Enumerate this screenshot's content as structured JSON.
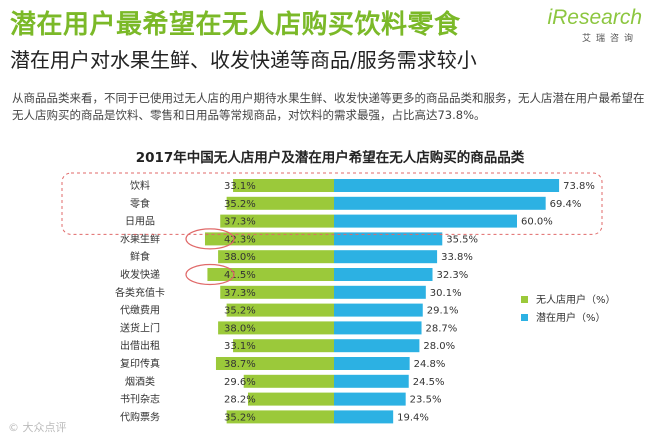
{
  "header": {
    "headline": "潜在用户最希望在无人店购买饮料零食",
    "subheadline": "潜在用户对水果生鲜、收发快递等商品/服务需求较小",
    "intro": "从商品品类来看，不同于已使用过无人店的用户期待水果生鲜、收发快递等更多的商品品类和服务，无人店潜在用户最希望在无人店购买的商品是饮料、零售和日用品等常规商品，对饮料的需求最强，占比高达73.8%。"
  },
  "logo": {
    "word": "iResearch",
    "sub": "艾瑞咨询"
  },
  "watermark": "© 大众点评",
  "colors": {
    "headline": "#7bb928",
    "series_used": "#9bc93a",
    "series_potential": "#2cb1e3",
    "highlight": "#e06a6a"
  },
  "chart_data": {
    "type": "bar",
    "orientation": "horizontal-diverging",
    "title": "2017年中国无人店用户及潜在用户希望在无人店购买的商品品类",
    "categories": [
      "饮料",
      "零食",
      "日用品",
      "水果生鲜",
      "鲜食",
      "收发快递",
      "各类充值卡",
      "代缴费用",
      "送货上门",
      "出借出租",
      "复印传真",
      "烟酒类",
      "书刊杂志",
      "代购票务"
    ],
    "series": [
      {
        "name": "无人店用户（%）",
        "values": [
          33.1,
          35.2,
          37.3,
          42.3,
          38.0,
          41.5,
          37.3,
          35.2,
          38.0,
          33.1,
          38.7,
          29.6,
          28.2,
          35.2
        ]
      },
      {
        "name": "潜在用户（%）",
        "values": [
          73.8,
          69.4,
          60.0,
          35.5,
          33.8,
          32.3,
          30.1,
          29.1,
          28.7,
          28.0,
          24.8,
          24.5,
          23.5,
          19.4
        ]
      }
    ],
    "legend_position": "right",
    "highlights": {
      "box_categories": [
        "饮料",
        "零食",
        "日用品"
      ],
      "circled": [
        [
          "水果生鲜",
          "无人店用户（%）"
        ],
        [
          "收发快递",
          "无人店用户（%）"
        ]
      ]
    }
  }
}
